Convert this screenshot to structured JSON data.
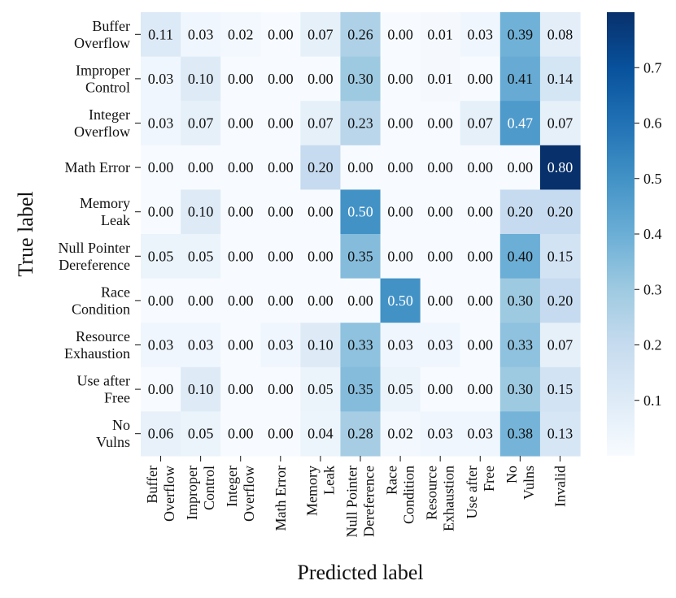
{
  "chart_data": {
    "type": "heatmap",
    "title": "",
    "xlabel": "Predicted label",
    "ylabel": "True label",
    "y_categories": [
      [
        "Buffer",
        "Overflow"
      ],
      [
        "Improper",
        "Control"
      ],
      [
        "Integer",
        "Overflow"
      ],
      [
        "Math Error"
      ],
      [
        "Memory",
        "Leak"
      ],
      [
        "Null Pointer",
        "Dereference"
      ],
      [
        "Race",
        "Condition"
      ],
      [
        "Resource",
        "Exhaustion"
      ],
      [
        "Use after",
        "Free"
      ],
      [
        "No",
        "Vulns"
      ]
    ],
    "x_categories": [
      [
        "Buffer",
        "Overflow"
      ],
      [
        "Improper",
        "Control"
      ],
      [
        "Integer",
        "Overflow"
      ],
      [
        "Math Error"
      ],
      [
        "Memory",
        "Leak"
      ],
      [
        "Null Pointer",
        "Dereference"
      ],
      [
        "Race",
        "Condition"
      ],
      [
        "Resource",
        "Exhaustion"
      ],
      [
        "Use after",
        "Free"
      ],
      [
        "No",
        "Vulns"
      ],
      [
        "Invalid"
      ]
    ],
    "values": [
      [
        0.11,
        0.03,
        0.02,
        0.0,
        0.07,
        0.26,
        0.0,
        0.01,
        0.03,
        0.39,
        0.08
      ],
      [
        0.03,
        0.1,
        0.0,
        0.0,
        0.0,
        0.3,
        0.0,
        0.01,
        0.0,
        0.41,
        0.14
      ],
      [
        0.03,
        0.07,
        0.0,
        0.0,
        0.07,
        0.23,
        0.0,
        0.0,
        0.07,
        0.47,
        0.07
      ],
      [
        0.0,
        0.0,
        0.0,
        0.0,
        0.2,
        0.0,
        0.0,
        0.0,
        0.0,
        0.0,
        0.8
      ],
      [
        0.0,
        0.1,
        0.0,
        0.0,
        0.0,
        0.5,
        0.0,
        0.0,
        0.0,
        0.2,
        0.2
      ],
      [
        0.05,
        0.05,
        0.0,
        0.0,
        0.0,
        0.35,
        0.0,
        0.0,
        0.0,
        0.4,
        0.15
      ],
      [
        0.0,
        0.0,
        0.0,
        0.0,
        0.0,
        0.0,
        0.5,
        0.0,
        0.0,
        0.3,
        0.2
      ],
      [
        0.03,
        0.03,
        0.0,
        0.03,
        0.1,
        0.33,
        0.03,
        0.03,
        0.0,
        0.33,
        0.07
      ],
      [
        0.0,
        0.1,
        0.0,
        0.0,
        0.05,
        0.35,
        0.05,
        0.0,
        0.0,
        0.3,
        0.15
      ],
      [
        0.06,
        0.05,
        0.0,
        0.0,
        0.04,
        0.28,
        0.02,
        0.03,
        0.03,
        0.38,
        0.13
      ]
    ],
    "value_format": "0.00",
    "colormap": "Blues",
    "color_range": [
      0.0,
      0.8
    ],
    "colorbar": {
      "ticks": [
        0.1,
        0.2,
        0.3,
        0.4,
        0.5,
        0.6,
        0.7
      ],
      "tick_labels": [
        "0.1",
        "0.2",
        "0.3",
        "0.4",
        "0.5",
        "0.6",
        "0.7"
      ],
      "placement": "right"
    },
    "grid": false
  }
}
